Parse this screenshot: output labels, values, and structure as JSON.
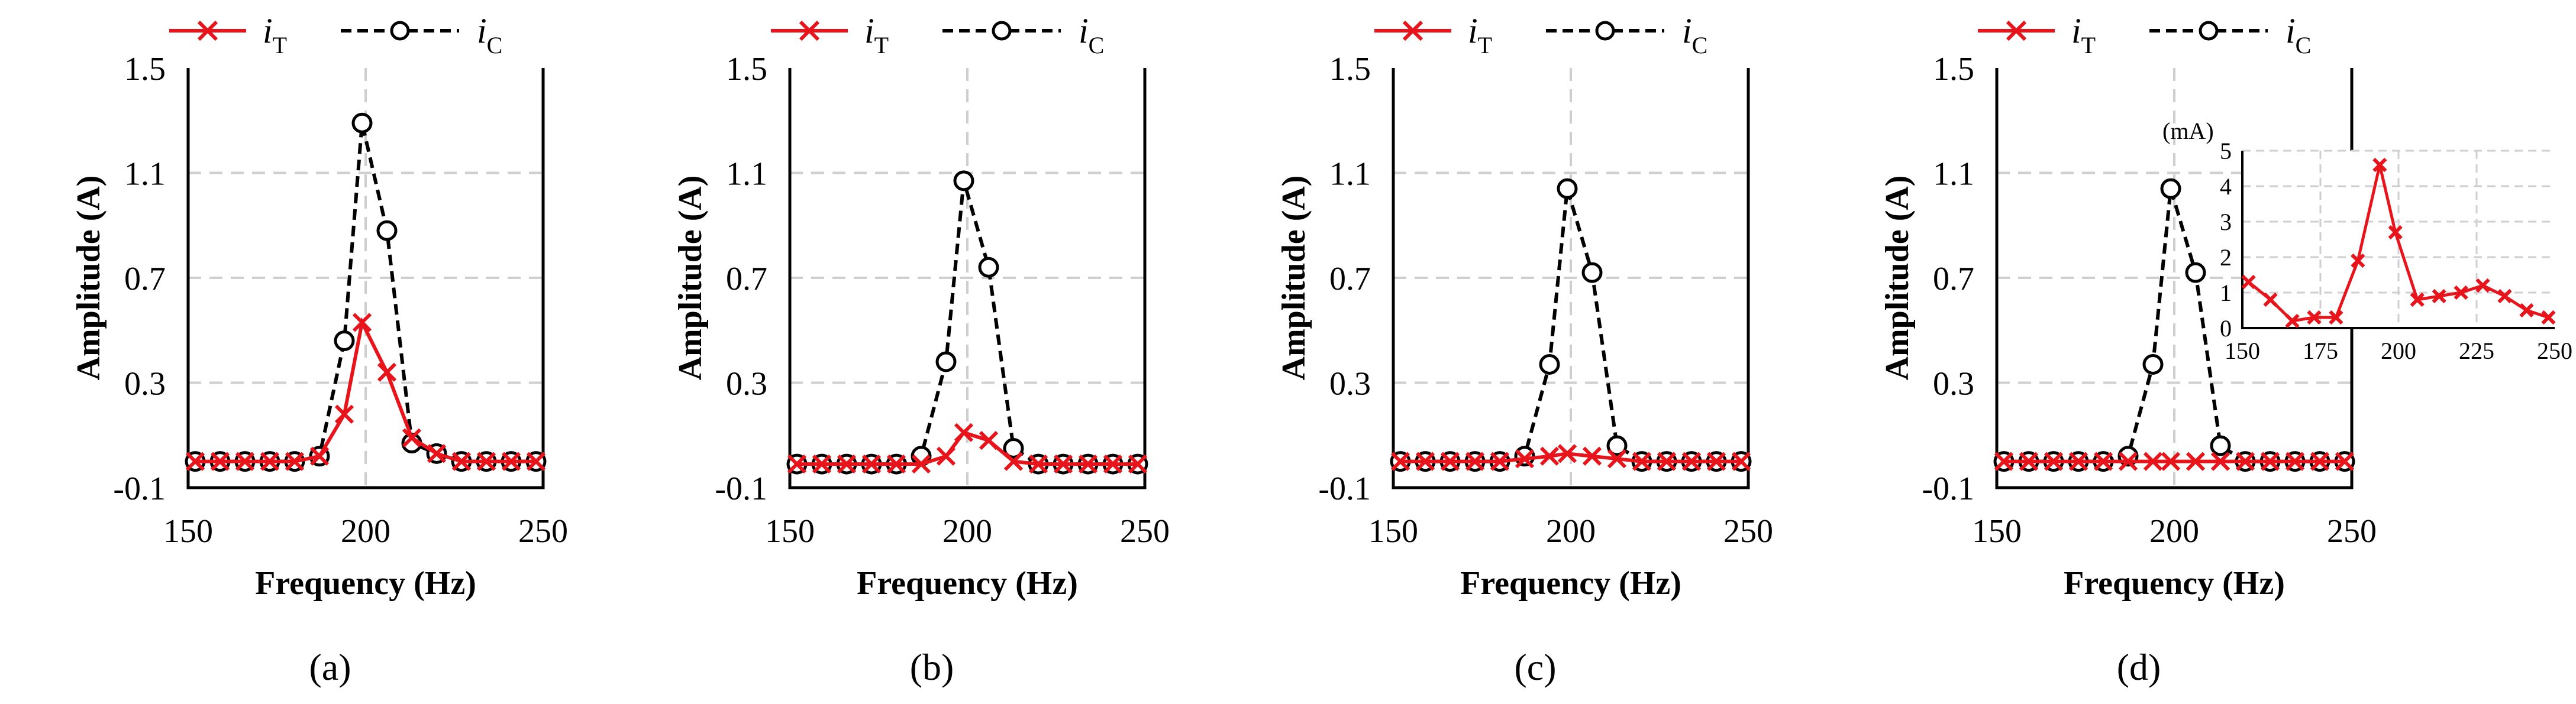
{
  "colors": {
    "iT": "#e8141b",
    "iC": "#000000",
    "grid": "#cfcfcf",
    "axis": "#000000"
  },
  "legend": {
    "iT_main": "i",
    "iT_sub": "T",
    "iC_main": "i",
    "iC_sub": "C"
  },
  "chart_data": [
    {
      "type": "line",
      "panel_label": "(a)",
      "xlabel": "Frequency  (Hz)",
      "ylabel": "Amplitude (A)",
      "xlim": [
        150,
        250
      ],
      "ylim": [
        -0.1,
        1.5
      ],
      "xticks": [
        "150",
        "200",
        "250"
      ],
      "yticks": [
        "-0.1",
        "0.3",
        "0.7",
        "1.1",
        "1.5"
      ],
      "x": [
        152,
        159,
        166,
        173,
        180,
        187,
        194,
        199,
        206,
        213,
        220,
        227,
        234,
        241,
        248
      ],
      "series": [
        {
          "name": "iT",
          "values": [
            0.0,
            0.0,
            0.0,
            0.0,
            0.0,
            0.02,
            0.18,
            0.53,
            0.34,
            0.09,
            0.03,
            0.0,
            0.0,
            0.0,
            0.0
          ]
        },
        {
          "name": "iC",
          "values": [
            0.0,
            0.0,
            0.0,
            0.0,
            0.0,
            0.02,
            0.46,
            1.29,
            0.88,
            0.07,
            0.03,
            0.0,
            0.0,
            0.0,
            0.0
          ]
        }
      ]
    },
    {
      "type": "line",
      "panel_label": "(b)",
      "xlabel": "Frequency  (Hz)",
      "ylabel": "Amplitude (A)",
      "xlim": [
        150,
        250
      ],
      "ylim": [
        -0.1,
        1.5
      ],
      "xticks": [
        "150",
        "200",
        "250"
      ],
      "yticks": [
        "-0.1",
        "0.3",
        "0.7",
        "1.1",
        "1.5"
      ],
      "x": [
        152,
        159,
        166,
        173,
        180,
        187,
        194,
        199,
        206,
        213,
        220,
        227,
        234,
        241,
        248
      ],
      "series": [
        {
          "name": "iT",
          "values": [
            -0.01,
            -0.01,
            -0.01,
            -0.01,
            -0.01,
            -0.01,
            0.02,
            0.11,
            0.08,
            0.0,
            -0.01,
            -0.01,
            -0.01,
            -0.01,
            -0.01
          ]
        },
        {
          "name": "iC",
          "values": [
            -0.01,
            -0.01,
            -0.01,
            -0.01,
            -0.01,
            0.02,
            0.38,
            1.07,
            0.74,
            0.05,
            -0.01,
            -0.01,
            -0.01,
            -0.01,
            -0.01
          ]
        }
      ]
    },
    {
      "type": "line",
      "panel_label": "(c)",
      "xlabel": "Frequency  (Hz)",
      "ylabel": "Amplitude (A)",
      "xlim": [
        150,
        250
      ],
      "ylim": [
        -0.1,
        1.5
      ],
      "xticks": [
        "150",
        "200",
        "250"
      ],
      "yticks": [
        "-0.1",
        "0.3",
        "0.7",
        "1.1",
        "1.5"
      ],
      "x": [
        152,
        159,
        166,
        173,
        180,
        187,
        194,
        199,
        206,
        213,
        220,
        227,
        234,
        241,
        248
      ],
      "series": [
        {
          "name": "iT",
          "values": [
            0.0,
            0.0,
            0.0,
            0.0,
            0.0,
            0.01,
            0.02,
            0.03,
            0.02,
            0.01,
            0.0,
            0.0,
            0.0,
            0.0,
            0.0
          ]
        },
        {
          "name": "iC",
          "values": [
            0.0,
            0.0,
            0.0,
            0.0,
            0.0,
            0.02,
            0.37,
            1.04,
            0.72,
            0.06,
            0.0,
            0.0,
            0.0,
            0.0,
            0.0
          ]
        }
      ]
    },
    {
      "type": "line",
      "panel_label": "(d)",
      "xlabel": "Frequency  (Hz)",
      "ylabel": "Amplitude (A)",
      "xlim": [
        150,
        250
      ],
      "ylim": [
        -0.1,
        1.5
      ],
      "xticks": [
        "150",
        "200",
        "250"
      ],
      "yticks": [
        "-0.1",
        "0.3",
        "0.7",
        "1.1",
        "1.5"
      ],
      "x": [
        152,
        159,
        166,
        173,
        180,
        187,
        194,
        199,
        206,
        213,
        220,
        227,
        234,
        241,
        248
      ],
      "series": [
        {
          "name": "iT",
          "values": [
            0.0,
            0.0,
            0.0,
            0.0,
            0.0,
            0.0,
            0.0,
            0.0,
            0.0,
            0.0,
            0.0,
            0.0,
            0.0,
            0.0,
            0.0
          ]
        },
        {
          "name": "iC",
          "values": [
            0.0,
            0.0,
            0.0,
            0.0,
            0.0,
            0.02,
            0.37,
            1.04,
            0.72,
            0.06,
            0.0,
            0.0,
            0.0,
            0.0,
            0.0
          ]
        }
      ],
      "inset": {
        "unit_label": "(mA)",
        "xlim": [
          150,
          250
        ],
        "ylim": [
          0,
          5
        ],
        "xticks": [
          "150",
          "175",
          "200",
          "225",
          "250"
        ],
        "yticks": [
          "0",
          "1",
          "2",
          "3",
          "4",
          "5"
        ],
        "x": [
          152,
          159,
          166,
          173,
          180,
          187,
          194,
          199,
          206,
          213,
          220,
          227,
          234,
          241,
          248
        ],
        "series": [
          {
            "name": "iT",
            "values": [
              1.3,
              0.8,
              0.2,
              0.3,
              0.3,
              1.9,
              4.6,
              2.7,
              0.8,
              0.9,
              1.0,
              1.2,
              0.9,
              0.5,
              0.3
            ]
          }
        ]
      }
    }
  ]
}
